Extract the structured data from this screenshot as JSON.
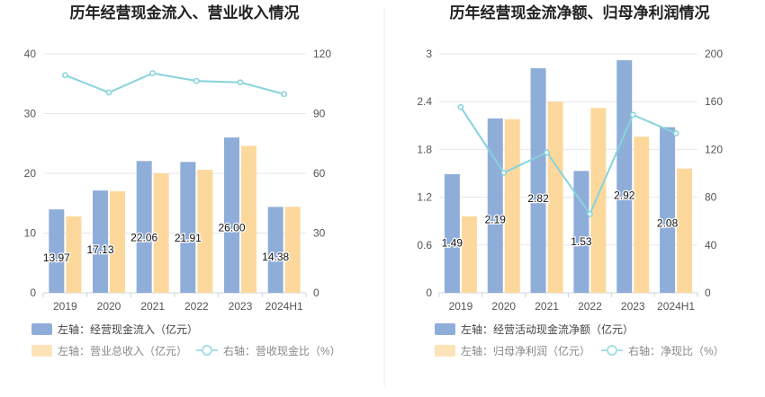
{
  "colors": {
    "bar_primary": "#8fadd9",
    "bar_secondary": "#fdd89c",
    "line": "#86d3dc",
    "axis_text": "#555555",
    "grid": "#e4e7ee",
    "title": "#222222",
    "divider": "#e8e8e8"
  },
  "chart_data": [
    {
      "type": "bar",
      "title": "历年经营现金流入、营业收入情况",
      "categories": [
        "2019",
        "2020",
        "2021",
        "2022",
        "2023",
        "2024H1"
      ],
      "ylim_left": [
        0,
        40
      ],
      "yticks_left": [
        "0",
        "10",
        "20",
        "30",
        "40"
      ],
      "ylim_right": [
        0,
        120
      ],
      "yticks_right": [
        "0",
        "30",
        "60",
        "90",
        "120"
      ],
      "series": [
        {
          "name": "左轴：经营现金流入（亿元）",
          "axis": "left",
          "kind": "bar",
          "values": [
            13.97,
            17.13,
            22.06,
            21.91,
            26.0,
            14.38
          ],
          "labels": [
            "13.97",
            "17.13",
            "22.06",
            "21.91",
            "26.00",
            "14.38"
          ]
        },
        {
          "name": "左轴：营业总收入（亿元）",
          "axis": "left",
          "kind": "bar",
          "values": [
            12.8,
            17.0,
            20.0,
            20.6,
            24.6,
            14.4
          ]
        },
        {
          "name": "右轴：营收现金比（%）",
          "axis": "right",
          "kind": "line",
          "values": [
            109.3,
            100.6,
            110.3,
            106.4,
            105.7,
            99.8
          ]
        }
      ]
    },
    {
      "type": "bar",
      "title": "历年经营现金流净额、归母净利润情况",
      "categories": [
        "2019",
        "2020",
        "2021",
        "2022",
        "2023",
        "2024H1"
      ],
      "ylim_left": [
        0,
        3
      ],
      "yticks_left": [
        "0",
        "0.6",
        "1.2",
        "1.8",
        "2.4",
        "3"
      ],
      "ylim_right": [
        0,
        200
      ],
      "yticks_right": [
        "0",
        "40",
        "80",
        "120",
        "160",
        "200"
      ],
      "series": [
        {
          "name": "左轴：经营活动现金流净额（亿元）",
          "axis": "left",
          "kind": "bar",
          "values": [
            1.49,
            2.19,
            2.82,
            1.53,
            2.92,
            2.08
          ],
          "labels": [
            "1.49",
            "2.19",
            "2.82",
            "1.53",
            "2.92",
            "2.08"
          ]
        },
        {
          "name": "左轴：归母净利润（亿元）",
          "axis": "left",
          "kind": "bar",
          "values": [
            0.96,
            2.18,
            2.4,
            2.32,
            1.96,
            1.56
          ]
        },
        {
          "name": "右轴：净现比（%）",
          "axis": "right",
          "kind": "line",
          "values": [
            155.5,
            100.5,
            117.5,
            66.0,
            149.0,
            133.5
          ]
        }
      ]
    }
  ]
}
